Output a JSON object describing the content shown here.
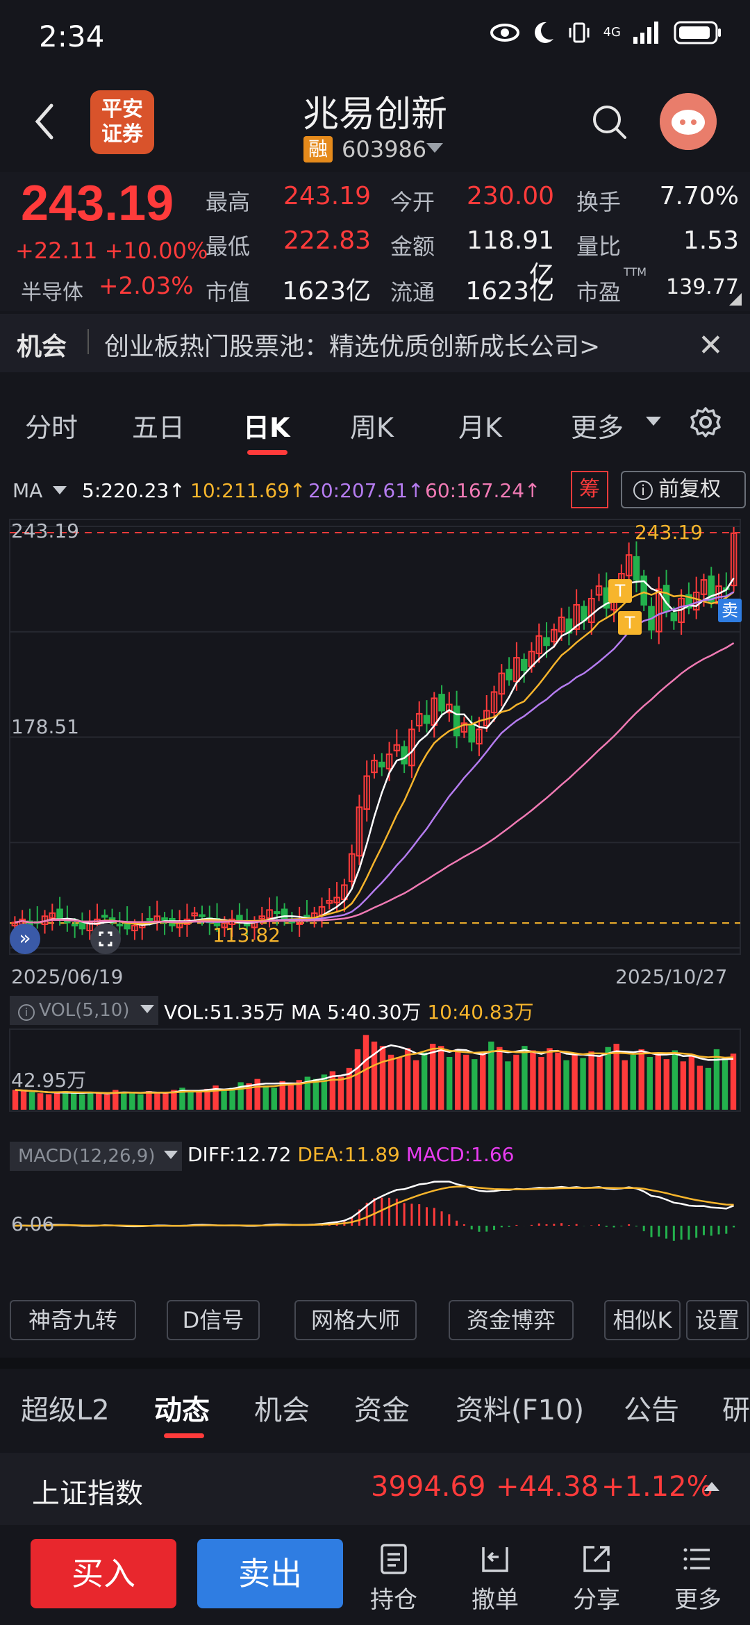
{
  "status_bar": {
    "time": "2:34",
    "network": "4G"
  },
  "header": {
    "logo_text": "平安\n证券",
    "stock_name": "兆易创新",
    "rong_badge": "融",
    "stock_code": "603986"
  },
  "quote": {
    "price": "243.19",
    "change": "+22.11",
    "change_pct": "+10.00%",
    "sector_name": "半导体",
    "sector_change": "+2.03%",
    "high_label": "最高",
    "high": "243.19",
    "low_label": "最低",
    "low": "222.83",
    "mktcap_label": "市值",
    "mktcap": "1623亿",
    "open_label": "今开",
    "open": "230.00",
    "amount_label": "金额",
    "amount": "118.91亿",
    "float_label": "流通",
    "float": "1623亿",
    "turnover_label": "换手",
    "turnover": "7.70%",
    "volratio_label": "量比",
    "volratio": "1.53",
    "pe_label": "市盈",
    "pe_sup": "TTM",
    "pe": "139.77"
  },
  "opportunity": {
    "label": "机会",
    "text": "创业板热门股票池：精选优质创新成长公司>"
  },
  "ktabs": [
    "分时",
    "五日",
    "日K",
    "周K",
    "月K",
    "更多"
  ],
  "ma_row": {
    "label": "MA",
    "ma5": "5:220.23↑",
    "ma10": "10:211.69↑",
    "ma20": "20:207.61↑",
    "ma60": "60:167.24↑",
    "chou": "筹",
    "fuquan": "前复权"
  },
  "colors": {
    "up": "#ff3b3b",
    "down": "#23b14d",
    "ma5": "#ffffff",
    "ma10": "#f7b52c",
    "ma20": "#b57cf0",
    "ma60": "#f07ab4",
    "bg": "#15161c"
  },
  "chart_data": [
    {
      "type": "candlestick",
      "title": "日K",
      "y_labels": [
        "243.19",
        "178.51"
      ],
      "x_labels": [
        "2025/06/19",
        "2025/10/27"
      ],
      "annotations": [
        "243.19",
        "113.82",
        "T",
        "T",
        "卖"
      ],
      "ylim": [
        113.82,
        243.19
      ],
      "close": [
        118,
        119,
        117,
        118,
        120,
        121,
        119,
        118,
        117,
        116,
        118,
        119,
        120,
        118,
        117,
        116,
        117,
        118,
        119,
        120,
        118,
        117,
        118,
        119,
        121,
        120,
        118,
        117,
        118,
        119,
        118,
        117,
        118,
        120,
        122,
        121,
        119,
        118,
        119,
        120,
        121,
        123,
        125,
        126,
        130,
        140,
        155,
        165,
        170,
        168,
        172,
        175,
        169,
        180,
        185,
        182,
        190,
        186,
        188,
        178,
        182,
        176,
        180,
        186,
        192,
        198,
        196,
        203,
        199,
        205,
        210,
        207,
        212,
        216,
        211,
        220,
        215,
        222,
        226,
        219,
        224,
        230,
        236,
        228,
        220,
        212,
        225,
        218,
        215,
        222,
        219,
        224,
        228,
        221,
        226,
        225,
        243
      ],
      "ma_last": {
        "ma5": 220.23,
        "ma10": 211.69,
        "ma20": 207.61,
        "ma60": 167.24
      }
    },
    {
      "type": "bar",
      "title": "VOL(5,10)",
      "y_labels": [
        "42.95万"
      ],
      "series": [
        {
          "name": "VOL",
          "values": [
            18,
            17,
            16,
            15,
            14,
            16,
            17,
            15,
            14,
            16,
            15,
            14,
            18,
            16,
            15,
            14,
            17,
            16,
            15,
            18,
            20,
            17,
            16,
            19,
            22,
            18,
            20,
            25,
            24,
            28,
            22,
            20,
            26,
            24,
            27,
            30,
            28,
            32,
            35,
            30,
            38,
            55,
            68,
            62,
            58,
            50,
            48,
            56,
            45,
            52,
            60,
            58,
            48,
            55,
            50,
            46,
            52,
            62,
            57,
            44,
            50,
            58,
            54,
            48,
            56,
            52,
            45,
            50,
            47,
            53,
            49,
            57,
            60,
            45,
            50,
            55,
            48,
            52,
            46,
            54,
            44,
            50,
            40,
            38,
            55,
            47,
            51
          ]
        },
        {
          "name": "MA 5",
          "values_last": "40.30万"
        },
        {
          "name": "10",
          "values_last": "40.83万"
        }
      ],
      "last_vol": "51.35万"
    },
    {
      "type": "bar",
      "title": "MACD(12,26,9)",
      "y_labels": [
        "6.06"
      ],
      "series": [
        {
          "name": "DIFF",
          "last": 12.72
        },
        {
          "name": "DEA",
          "last": 11.89
        },
        {
          "name": "MACD",
          "last": 1.66
        }
      ]
    }
  ],
  "vol_text": {
    "tag": "VOL(5,10)",
    "vol": "VOL:51.35万",
    "ma5": "MA 5:40.30万",
    "ma10": "10:40.83万"
  },
  "macd_text": {
    "tag": "MACD(12,26,9)",
    "diff": "DIFF:12.72",
    "dea": "DEA:11.89",
    "macd": "MACD:1.66"
  },
  "chart_labels": {
    "ytop": "243.19",
    "ymid": "178.51",
    "cur_price": "243.19",
    "low_mark": "113.82",
    "date_start": "2025/06/19",
    "date_end": "2025/10/27",
    "vol_y": "42.95万",
    "macd_y": "6.06",
    "t_badge": "T",
    "sell_badge": "卖"
  },
  "tools": [
    "神奇九转",
    "D信号",
    "网格大师",
    "资金博弈",
    "相似K",
    "设置"
  ],
  "info_tabs": [
    "超级L2",
    "动态",
    "机会",
    "资金",
    "资料(F10)",
    "公告",
    "研"
  ],
  "index_bar": {
    "name": "上证指数",
    "value": "3994.69",
    "change": "+44.38",
    "pct": "+1.12%"
  },
  "bottom": {
    "buy": "买入",
    "sell": "卖出",
    "hold": "持仓",
    "cancel": "撤单",
    "share": "分享",
    "more": "更多"
  }
}
